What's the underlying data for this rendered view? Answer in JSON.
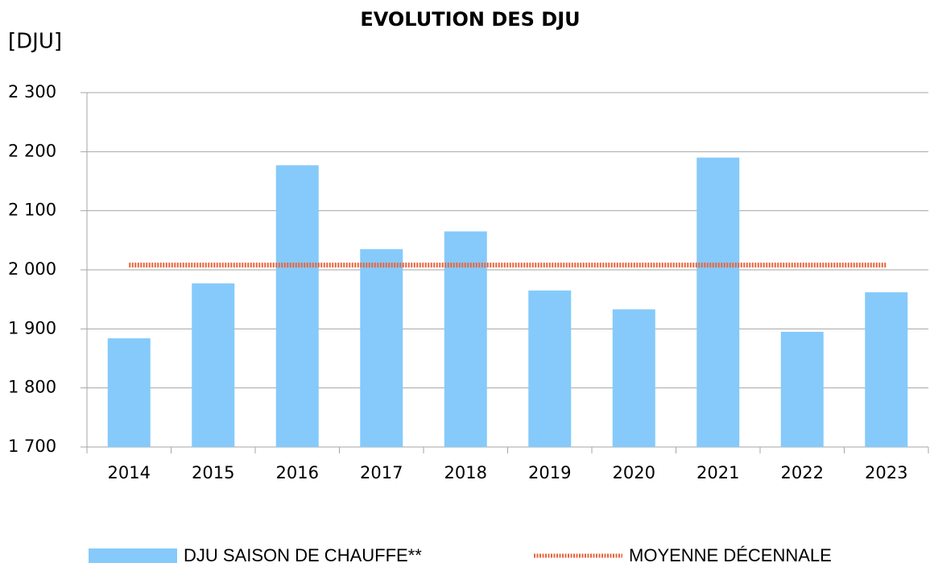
{
  "chart_data": {
    "type": "bar_line",
    "title": "EVOLUTION DES DJU",
    "y_label": "[DJU]",
    "categories": [
      "2014",
      "2015",
      "2016",
      "2017",
      "2018",
      "2019",
      "2020",
      "2021",
      "2022",
      "2023"
    ],
    "series": [
      {
        "name": "DJU SAISON DE CHAUFFE**",
        "type": "bar",
        "color": "#85cafa",
        "values": [
          1884,
          1977,
          2177,
          2035,
          2065,
          1965,
          1933,
          2190,
          1895,
          1962
        ]
      },
      {
        "name": "MOYENNE DÉCENNALE",
        "type": "line",
        "color": "#e8643c",
        "values": [
          2008,
          2008,
          2008,
          2008,
          2008,
          2008,
          2008,
          2008,
          2008,
          2008
        ]
      }
    ],
    "ylim": [
      1700,
      2300
    ],
    "yticks": [
      {
        "value": 1700,
        "label": "1 700"
      },
      {
        "value": 1800,
        "label": "1 800"
      },
      {
        "value": 1900,
        "label": "1 900"
      },
      {
        "value": 2000,
        "label": "2 000"
      },
      {
        "value": 2100,
        "label": "2 100"
      },
      {
        "value": 2200,
        "label": "2 200"
      },
      {
        "value": 2300,
        "label": "2 300"
      }
    ],
    "grid": true,
    "legend": "bottom"
  }
}
